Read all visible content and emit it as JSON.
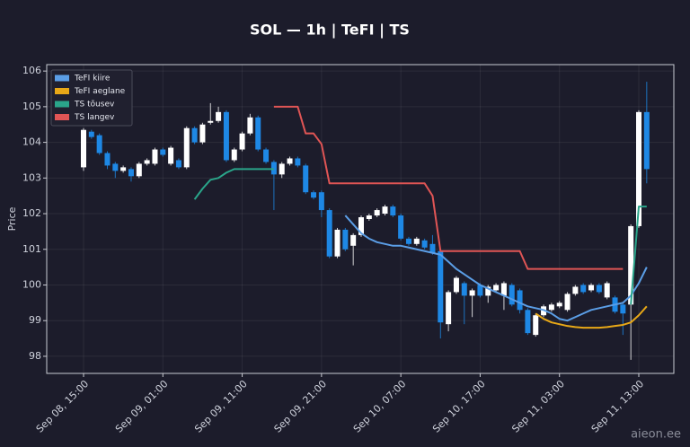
{
  "chart_data": {
    "type": "candlestick",
    "title": "SOL — 1h  |  TeFI  |  TS",
    "y_label": "Price",
    "watermark": "aieon.ee",
    "ylim": [
      97.52,
      106.18
    ],
    "yticks": [
      98,
      99,
      100,
      101,
      102,
      103,
      104,
      105,
      106
    ],
    "grid": true,
    "legend_position": "upper left",
    "up_color": "#ffffff",
    "down_color": "#1e88e5",
    "categories": [
      "Sep 08, 15:00",
      null,
      null,
      null,
      null,
      null,
      null,
      null,
      null,
      null,
      "Sep 09, 01:00",
      null,
      null,
      null,
      null,
      null,
      null,
      null,
      null,
      null,
      "Sep 09, 11:00",
      null,
      null,
      null,
      null,
      null,
      null,
      null,
      null,
      null,
      "Sep 09, 21:00",
      null,
      null,
      null,
      null,
      null,
      null,
      null,
      null,
      null,
      "Sep 10, 07:00",
      null,
      null,
      null,
      null,
      null,
      null,
      null,
      null,
      null,
      "Sep 10, 17:00",
      null,
      null,
      null,
      null,
      null,
      null,
      null,
      null,
      null,
      "Sep 11, 03:00",
      null,
      null,
      null,
      null,
      null,
      null,
      null,
      null,
      null,
      "Sep 11, 13:00",
      null
    ],
    "open": [
      103.3,
      104.3,
      104.2,
      103.7,
      103.4,
      103.2,
      103.25,
      103.05,
      103.4,
      103.4,
      103.8,
      103.4,
      103.5,
      103.3,
      104.4,
      104.0,
      104.55,
      104.6,
      104.85,
      103.5,
      103.8,
      104.25,
      104.7,
      103.8,
      103.45,
      103.1,
      103.4,
      103.55,
      103.35,
      102.6,
      102.6,
      102.1,
      100.8,
      101.55,
      101.1,
      101.4,
      101.85,
      101.95,
      102.0,
      102.2,
      101.95,
      101.3,
      101.15,
      101.25,
      101.15,
      100.95,
      98.9,
      99.8,
      100.05,
      99.7,
      100.0,
      99.7,
      99.85,
      99.7,
      100.0,
      99.85,
      99.3,
      98.6,
      99.15,
      99.3,
      99.4,
      99.3,
      99.75,
      100.0,
      99.85,
      100.0,
      99.65,
      99.65,
      99.45,
      99.45,
      101.65,
      104.85
    ],
    "high": [
      104.4,
      104.35,
      104.25,
      103.75,
      103.45,
      103.35,
      103.3,
      103.45,
      103.55,
      103.85,
      103.85,
      103.9,
      103.55,
      104.45,
      104.45,
      104.55,
      105.1,
      105.0,
      104.9,
      103.85,
      104.3,
      104.8,
      104.75,
      103.85,
      103.5,
      103.45,
      103.6,
      103.6,
      103.4,
      102.65,
      102.65,
      102.15,
      101.6,
      101.6,
      101.45,
      101.95,
      102.0,
      102.15,
      102.25,
      102.25,
      102.0,
      101.35,
      101.35,
      101.3,
      101.4,
      101.0,
      99.85,
      100.25,
      100.1,
      99.9,
      100.05,
      100.0,
      100.05,
      100.1,
      100.05,
      99.9,
      99.35,
      99.2,
      99.45,
      99.5,
      99.55,
      99.8,
      100.0,
      100.05,
      100.05,
      100.05,
      100.1,
      99.7,
      99.5,
      101.7,
      104.9,
      105.7
    ],
    "low": [
      103.2,
      104.1,
      103.65,
      103.25,
      103.0,
      103.15,
      102.9,
      103.0,
      103.35,
      103.35,
      103.6,
      103.35,
      103.25,
      103.25,
      103.95,
      103.95,
      104.5,
      104.55,
      103.45,
      103.45,
      103.75,
      104.2,
      103.75,
      103.4,
      102.1,
      103.0,
      103.35,
      103.3,
      102.55,
      102.4,
      101.9,
      100.75,
      100.75,
      100.95,
      100.55,
      101.35,
      101.8,
      101.9,
      101.95,
      101.9,
      101.25,
      101.1,
      101.1,
      101.0,
      100.85,
      98.5,
      98.7,
      99.75,
      98.9,
      99.1,
      99.65,
      99.5,
      99.8,
      99.3,
      99.4,
      99.2,
      98.6,
      98.55,
      99.1,
      99.25,
      99.35,
      99.25,
      99.7,
      99.75,
      99.8,
      99.75,
      99.6,
      99.2,
      98.6,
      97.9,
      101.6,
      102.85
    ],
    "close": [
      104.35,
      104.15,
      103.7,
      103.35,
      103.2,
      103.3,
      103.05,
      103.4,
      103.5,
      103.8,
      103.65,
      103.85,
      103.3,
      104.4,
      104.0,
      104.5,
      104.6,
      104.85,
      103.5,
      103.8,
      104.25,
      104.7,
      103.8,
      103.45,
      103.1,
      103.4,
      103.55,
      103.35,
      102.6,
      102.45,
      102.1,
      100.8,
      101.55,
      101.0,
      101.4,
      101.9,
      101.95,
      102.1,
      102.2,
      101.95,
      101.3,
      101.15,
      101.3,
      101.05,
      100.9,
      98.95,
      99.8,
      100.2,
      99.7,
      99.85,
      99.7,
      99.95,
      100.0,
      100.05,
      99.45,
      99.3,
      98.65,
      99.15,
      99.4,
      99.45,
      99.5,
      99.75,
      99.95,
      99.8,
      100.0,
      99.8,
      100.05,
      99.25,
      99.2,
      101.65,
      104.85,
      103.25
    ],
    "series": [
      {
        "name": "TeFI kiire",
        "color": "#5b9ee6",
        "values": [
          null,
          null,
          null,
          null,
          null,
          null,
          null,
          null,
          null,
          null,
          null,
          null,
          null,
          null,
          null,
          null,
          null,
          null,
          null,
          null,
          null,
          null,
          null,
          null,
          null,
          null,
          null,
          null,
          null,
          null,
          null,
          null,
          null,
          101.95,
          101.7,
          101.45,
          101.3,
          101.2,
          101.15,
          101.1,
          101.1,
          101.05,
          101.0,
          100.95,
          100.9,
          100.85,
          100.65,
          100.45,
          100.3,
          100.15,
          100.0,
          99.9,
          99.8,
          99.7,
          99.6,
          99.5,
          99.4,
          99.35,
          99.3,
          99.2,
          99.05,
          99.0,
          99.1,
          99.2,
          99.3,
          99.35,
          99.4,
          99.45,
          99.5,
          99.7,
          100.05,
          100.5
        ]
      },
      {
        "name": "TeFI aeglane",
        "color": "#e8a817",
        "values": [
          null,
          null,
          null,
          null,
          null,
          null,
          null,
          null,
          null,
          null,
          null,
          null,
          null,
          null,
          null,
          null,
          null,
          null,
          null,
          null,
          null,
          null,
          null,
          null,
          null,
          null,
          null,
          null,
          null,
          null,
          null,
          null,
          null,
          null,
          null,
          null,
          null,
          null,
          null,
          null,
          null,
          null,
          null,
          null,
          null,
          null,
          null,
          null,
          null,
          null,
          null,
          null,
          null,
          null,
          null,
          null,
          null,
          99.2,
          99.05,
          98.95,
          98.9,
          98.85,
          98.82,
          98.8,
          98.8,
          98.8,
          98.82,
          98.85,
          98.88,
          98.95,
          99.15,
          99.4
        ]
      },
      {
        "name": "TS tõusev",
        "color": "#2aa58a",
        "values": [
          null,
          null,
          null,
          null,
          null,
          null,
          null,
          null,
          null,
          null,
          null,
          null,
          null,
          null,
          102.4,
          102.7,
          102.95,
          103.0,
          103.15,
          103.25,
          103.25,
          103.25,
          103.25,
          103.25,
          103.25,
          null,
          null,
          null,
          null,
          null,
          null,
          null,
          null,
          null,
          null,
          null,
          null,
          null,
          null,
          null,
          null,
          null,
          null,
          null,
          null,
          null,
          null,
          null,
          null,
          null,
          null,
          null,
          null,
          null,
          null,
          null,
          null,
          null,
          null,
          null,
          null,
          null,
          null,
          null,
          null,
          null,
          null,
          null,
          null,
          99.45,
          102.2,
          102.2
        ]
      },
      {
        "name": "TS langev",
        "color": "#e05555",
        "values": [
          null,
          null,
          null,
          null,
          null,
          null,
          null,
          null,
          null,
          null,
          null,
          null,
          null,
          null,
          null,
          null,
          null,
          null,
          null,
          null,
          null,
          null,
          null,
          null,
          105.0,
          105.0,
          105.0,
          105.0,
          104.25,
          104.25,
          103.95,
          102.85,
          102.85,
          102.85,
          102.85,
          102.85,
          102.85,
          102.85,
          102.85,
          102.85,
          102.85,
          102.85,
          102.85,
          102.85,
          102.5,
          100.95,
          100.95,
          100.95,
          100.95,
          100.95,
          100.95,
          100.95,
          100.95,
          100.95,
          100.95,
          100.95,
          100.45,
          100.45,
          100.45,
          100.45,
          100.45,
          100.45,
          100.45,
          100.45,
          100.45,
          100.45,
          100.45,
          100.45,
          100.45,
          null,
          null,
          null
        ]
      }
    ]
  }
}
